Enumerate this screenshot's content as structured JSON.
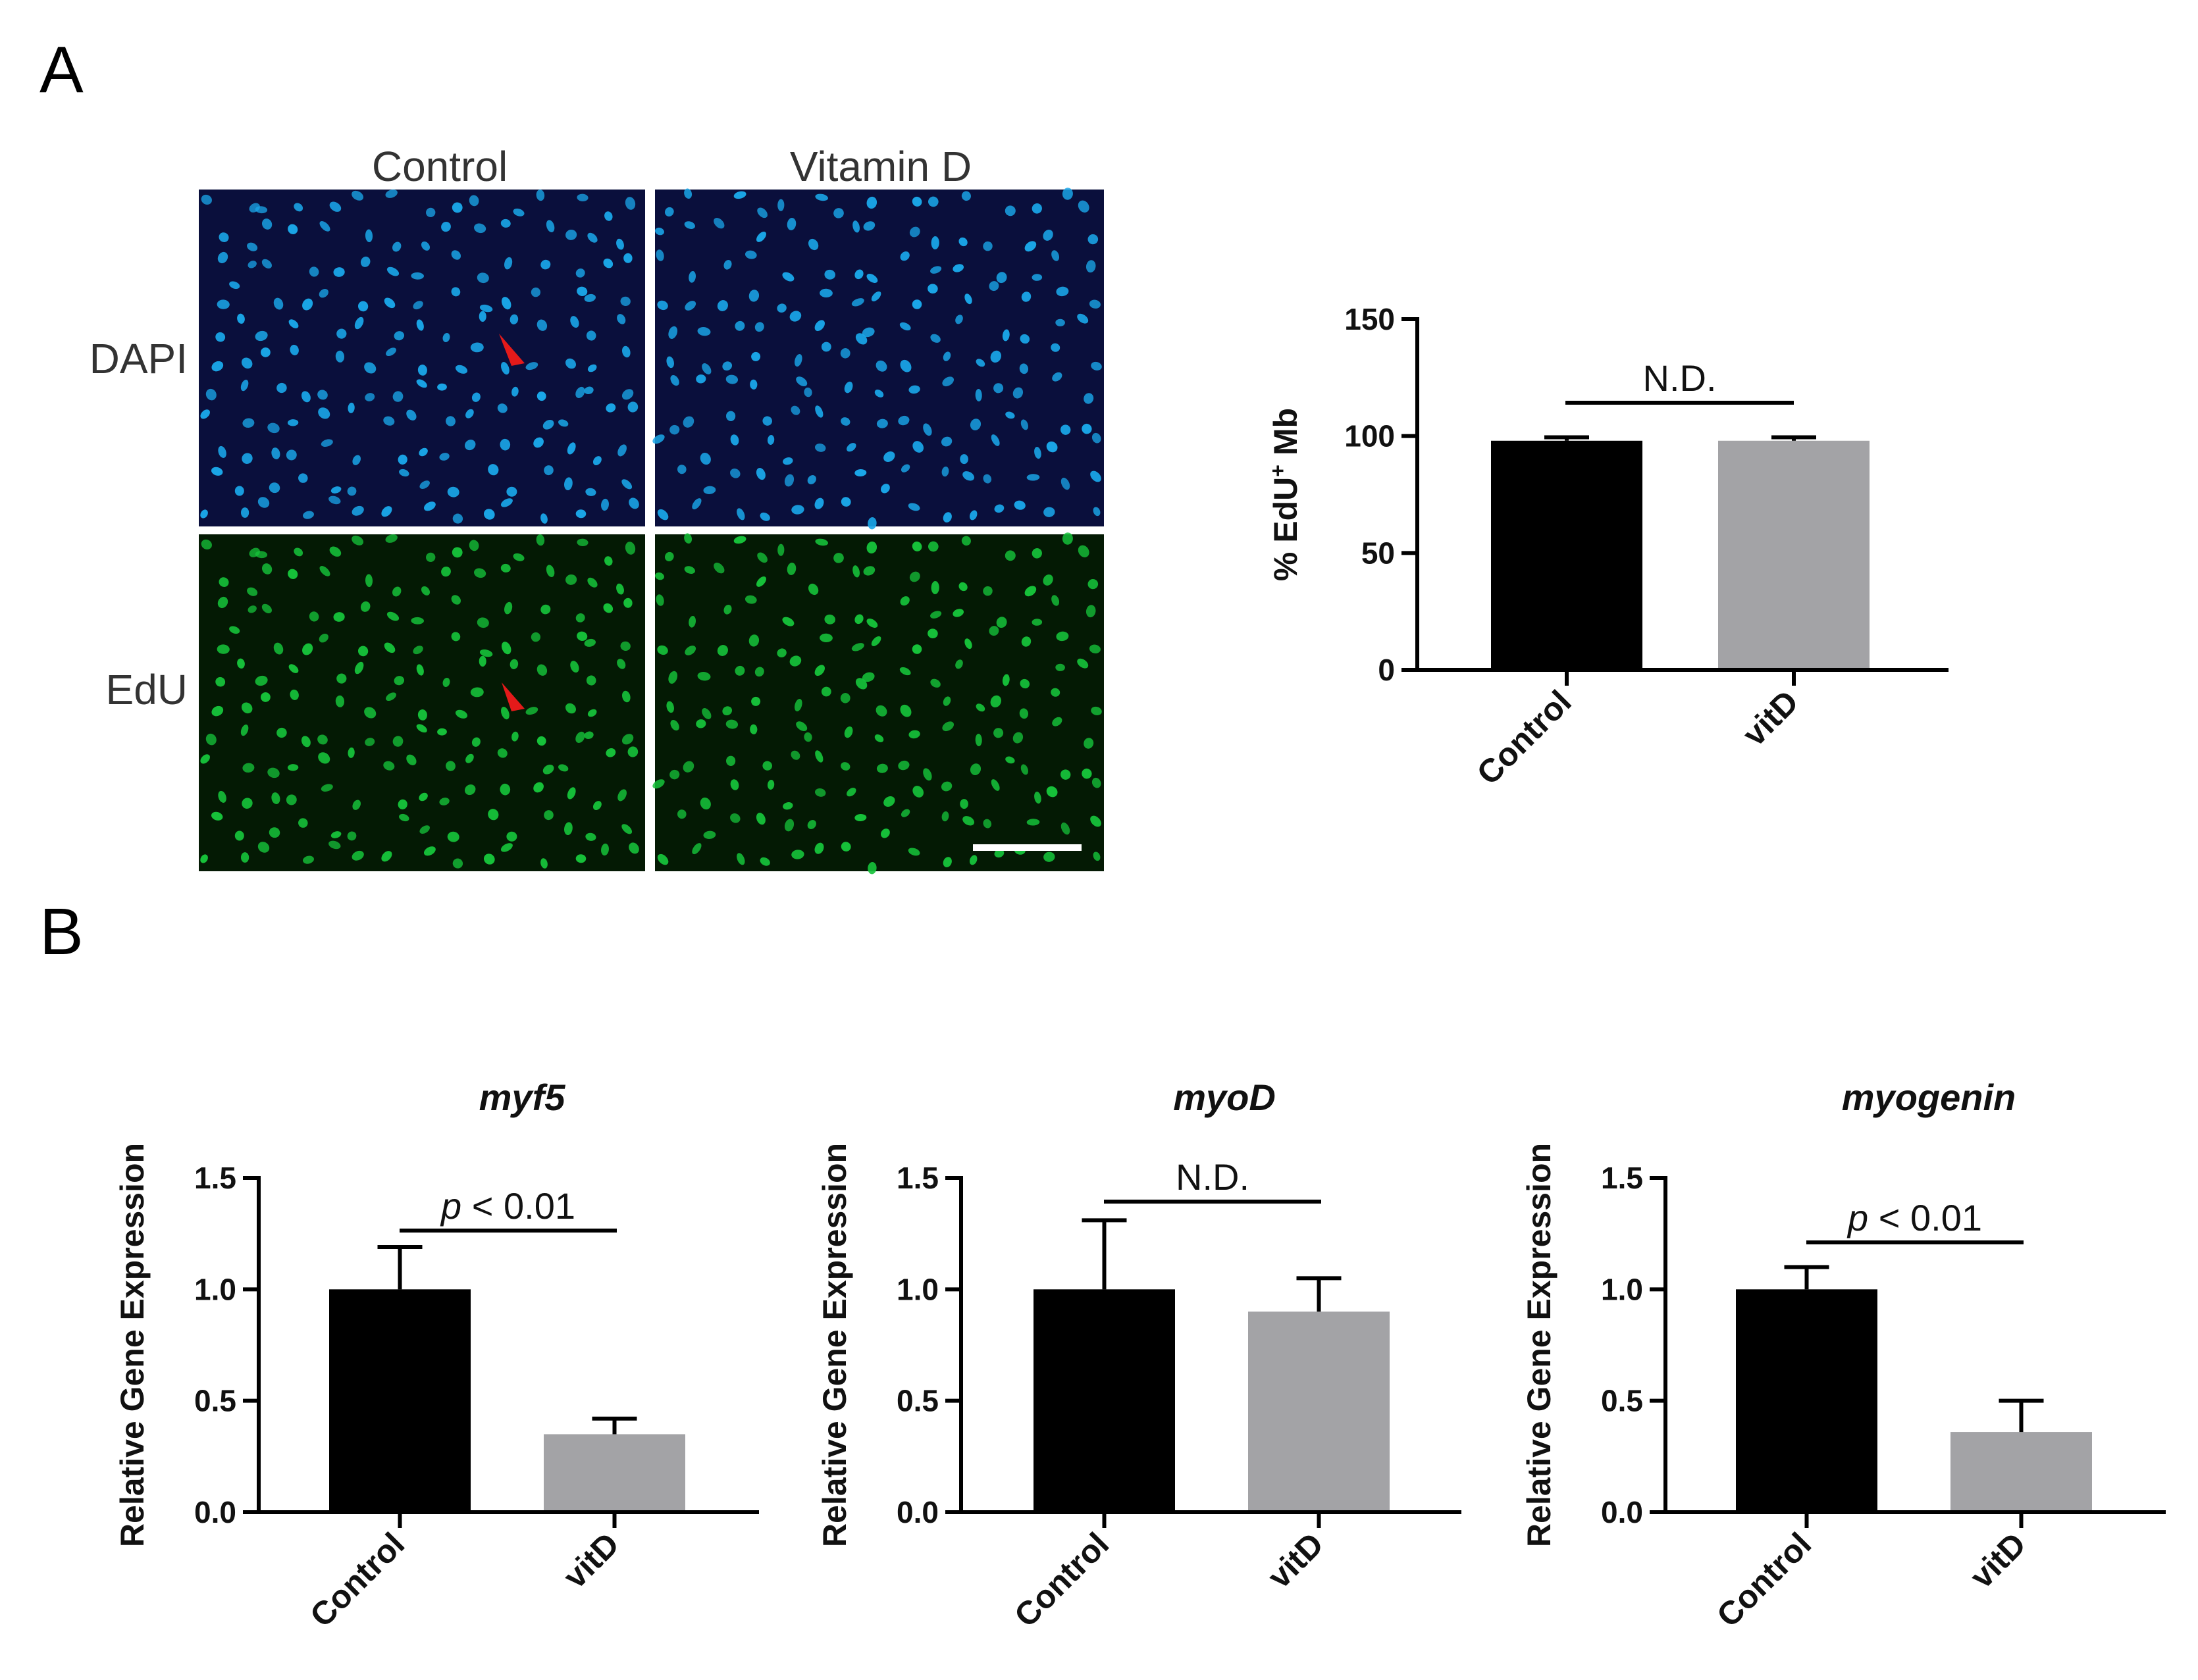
{
  "panel_a": {
    "letter": "A",
    "columns": [
      "Control",
      "Vitamin D"
    ],
    "rows": [
      "DAPI",
      "EdU"
    ],
    "colors": {
      "dapi_bg": "#0a0f3c",
      "dapi_nuclei": "#1aa6e8",
      "edu_bg": "#041a04",
      "edu_nuclei": "#16c23a",
      "arrow": "#e41a1a"
    }
  },
  "panel_b": {
    "letter": "B"
  },
  "chart_data": [
    {
      "type": "bar",
      "id": "edu",
      "title": "",
      "ylabel": "% EdU+ Mb",
      "ylabel_main": "% EdU",
      "ylabel_sup": "+",
      "ylabel_tail": " Mb",
      "categories": [
        "Control",
        "vitD"
      ],
      "values": [
        98,
        98
      ],
      "errors": [
        1.5,
        1.5
      ],
      "colors": [
        "#000000",
        "#a3a3a6"
      ],
      "ylim": [
        0,
        150
      ],
      "yticks": [
        "0",
        "50",
        "100",
        "150"
      ],
      "sig_label": "N.D.",
      "sig_italic_prefix": ""
    },
    {
      "type": "bar",
      "id": "myf5",
      "title": "myf5",
      "ylabel": "Relative Gene Expression",
      "categories": [
        "Control",
        "vitD"
      ],
      "values": [
        1.0,
        0.35
      ],
      "errors": [
        0.19,
        0.07
      ],
      "colors": [
        "#000000",
        "#a3a3a6"
      ],
      "ylim": [
        0,
        1.5
      ],
      "yticks": [
        "0.0",
        "0.5",
        "1.0",
        "1.5"
      ],
      "sig_label": " < 0.01",
      "sig_italic_prefix": "p"
    },
    {
      "type": "bar",
      "id": "myod",
      "title": "myoD",
      "ylabel": "Relative Gene Expression",
      "categories": [
        "Control",
        "vitD"
      ],
      "values": [
        1.0,
        0.9
      ],
      "errors": [
        0.31,
        0.15
      ],
      "colors": [
        "#000000",
        "#a3a3a6"
      ],
      "ylim": [
        0,
        1.5
      ],
      "yticks": [
        "0.0",
        "0.5",
        "1.0",
        "1.5"
      ],
      "sig_label": "N.D.",
      "sig_italic_prefix": ""
    },
    {
      "type": "bar",
      "id": "myogenin",
      "title": "myogenin",
      "ylabel": "Relative Gene Expression",
      "categories": [
        "Control",
        "vitD"
      ],
      "values": [
        1.0,
        0.36
      ],
      "errors": [
        0.1,
        0.14
      ],
      "colors": [
        "#000000",
        "#a3a3a6"
      ],
      "ylim": [
        0,
        1.5
      ],
      "yticks": [
        "0.0",
        "0.5",
        "1.0",
        "1.5"
      ],
      "sig_label": " < 0.01",
      "sig_italic_prefix": "p"
    }
  ]
}
